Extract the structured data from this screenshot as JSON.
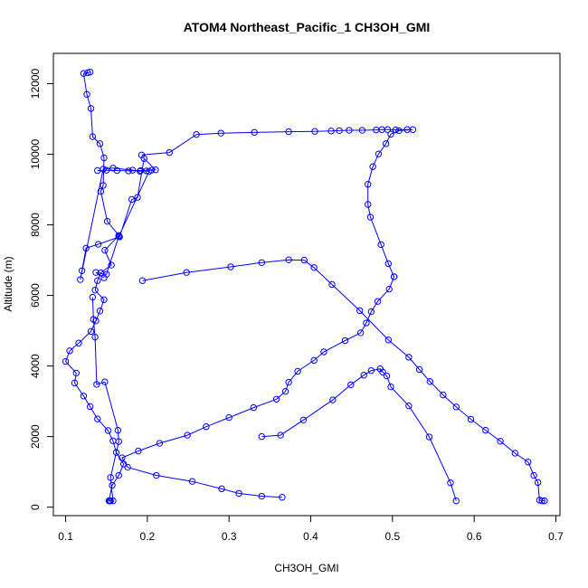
{
  "chart_data": {
    "type": "line",
    "title": "ATOM4 Northeast_Pacific_1 CH3OH_GMI",
    "xlabel": "CH3OH_GMI",
    "ylabel": "Altitude (m)",
    "xlim": [
      0.085,
      0.705
    ],
    "ylim": [
      -240,
      12860
    ],
    "x_ticks": [
      0.1,
      0.2,
      0.3,
      0.4,
      0.5,
      0.6,
      0.7
    ],
    "x_tick_labels": [
      "0.1",
      "0.2",
      "0.3",
      "0.4",
      "0.5",
      "0.6",
      "0.7"
    ],
    "y_ticks": [
      0,
      2000,
      4000,
      6000,
      8000,
      10000,
      12000
    ],
    "y_tick_labels": [
      "0",
      "2000",
      "4000",
      "6000",
      "8000",
      "10000",
      "12000"
    ],
    "grid": false,
    "series": [
      {
        "color": "#0000ff",
        "marker": "open-circle",
        "x": [
          0.13,
          0.127,
          0.122,
          0.126,
          0.131,
          0.133,
          0.142,
          0.147,
          0.146,
          0.143,
          0.151,
          0.165,
          0.148,
          0.156,
          0.143,
          0.139,
          0.136,
          0.147,
          0.142,
          0.137,
          0.131,
          0.116,
          0.105,
          0.1,
          0.113,
          0.111,
          0.122,
          0.13,
          0.139,
          0.152,
          0.158,
          0.162,
          0.171,
          0.165,
          0.157,
          0.153,
          0.154,
          0.155,
          0.158,
          0.155,
          0.165,
          0.164,
          0.148,
          0.138,
          0.136,
          0.134,
          0.133
        ],
        "y": [
          12330,
          12310,
          12290,
          11700,
          11300,
          10500,
          10300,
          9900,
          9120,
          8950,
          8100,
          7700,
          7280,
          6860,
          6640,
          6420,
          6150,
          5880,
          5560,
          5280,
          4980,
          4650,
          4430,
          4130,
          3800,
          3520,
          3150,
          2850,
          2500,
          2170,
          1880,
          1550,
          1220,
          900,
          620,
          180,
          180,
          180,
          180,
          840,
          1860,
          2180,
          3550,
          3480,
          4820,
          5320,
          5950
        ]
      },
      {
        "color": "#0000ff",
        "marker": "open-circle",
        "x": [
          0.139,
          0.15,
          0.163,
          0.177,
          0.192,
          0.205,
          0.21,
          0.196,
          0.188,
          0.181,
          0.166,
          0.14,
          0.125,
          0.12,
          0.118,
          0.146,
          0.158,
          0.182,
          0.191,
          0.199,
          0.202,
          0.165,
          0.15,
          0.137,
          0.147
        ],
        "y": [
          9540,
          9550,
          9540,
          9530,
          9540,
          9550,
          9560,
          9880,
          8780,
          8720,
          7660,
          7450,
          7340,
          6700,
          6450,
          9580,
          9610,
          9550,
          9520,
          9530,
          9510,
          7670,
          6600,
          6650,
          6500
        ]
      },
      {
        "color": "#0000ff",
        "marker": "open-circle",
        "x": [
          0.193,
          0.227,
          0.26,
          0.29,
          0.331,
          0.373,
          0.405,
          0.425,
          0.435,
          0.447,
          0.463,
          0.48,
          0.487,
          0.494,
          0.504,
          0.518,
          0.525,
          0.508,
          0.498,
          0.492,
          0.483,
          0.476,
          0.47,
          0.47,
          0.473,
          0.486,
          0.495,
          0.502
        ],
        "y": [
          9980,
          10050,
          10560,
          10600,
          10620,
          10640,
          10650,
          10660,
          10670,
          10680,
          10680,
          10690,
          10700,
          10700,
          10690,
          10700,
          10700,
          10670,
          10570,
          10300,
          10010,
          9650,
          9150,
          8580,
          8220,
          7440,
          6900,
          6530
        ]
      },
      {
        "color": "#0000ff",
        "marker": "open-circle",
        "x": [
          0.502,
          0.496,
          0.482,
          0.474,
          0.468,
          0.461,
          0.442,
          0.416,
          0.404,
          0.384,
          0.373,
          0.369,
          0.358,
          0.33,
          0.3,
          0.272,
          0.249,
          0.215,
          0.189,
          0.169,
          0.176,
          0.211,
          0.255,
          0.291,
          0.312,
          0.34,
          0.365
        ],
        "y": [
          6530,
          6180,
          5830,
          5540,
          5220,
          4940,
          4720,
          4400,
          4160,
          3850,
          3540,
          3280,
          3060,
          2820,
          2540,
          2280,
          2040,
          1810,
          1590,
          1400,
          1130,
          900,
          730,
          520,
          390,
          310,
          280
        ]
      },
      {
        "color": "#0000ff",
        "marker": "open-circle",
        "x": [
          0.194,
          0.248,
          0.302,
          0.34,
          0.373,
          0.392,
          0.404,
          0.426,
          0.46,
          0.495,
          0.52,
          0.533,
          0.546,
          0.562,
          0.578,
          0.596,
          0.614,
          0.632,
          0.65,
          0.666,
          0.673,
          0.678,
          0.68,
          0.683,
          0.686
        ],
        "y": [
          6420,
          6650,
          6810,
          6930,
          7010,
          7000,
          6790,
          6310,
          5570,
          4740,
          4250,
          3900,
          3560,
          3180,
          2840,
          2490,
          2180,
          1870,
          1530,
          1280,
          900,
          700,
          200,
          180,
          180
        ]
      },
      {
        "color": "#0000ff",
        "marker": "open-circle",
        "x": [
          0.34,
          0.363,
          0.391,
          0.427,
          0.449,
          0.465,
          0.474,
          0.485,
          0.488,
          0.493,
          0.498,
          0.52,
          0.545,
          0.571,
          0.578
        ],
        "y": [
          2000,
          2040,
          2470,
          3040,
          3470,
          3740,
          3870,
          3920,
          3830,
          3720,
          3410,
          2870,
          1990,
          690,
          180
        ]
      }
    ]
  }
}
